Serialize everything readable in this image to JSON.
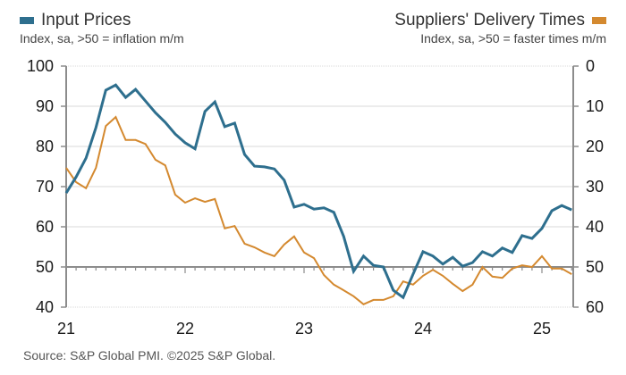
{
  "chart_data": {
    "type": "line",
    "title": "",
    "source": "Source: S&P Global PMI. ©2025 S&P Global.",
    "x_tick_labels": [
      "21",
      "22",
      "23",
      "24",
      "25"
    ],
    "x_start": "2021-01",
    "x_end": "2025-04",
    "frequency": "monthly",
    "left_axis": {
      "range": [
        40,
        100
      ],
      "ticks": [
        "100",
        "90",
        "80",
        "70",
        "60",
        "50",
        "40"
      ],
      "reference_line": 50
    },
    "right_axis": {
      "range": [
        0,
        60
      ],
      "inverted": true,
      "ticks": [
        "0",
        "10",
        "20",
        "30",
        "40",
        "50",
        "60"
      ]
    },
    "grid": true,
    "series": [
      {
        "name": "Input Prices",
        "subtitle": "Index, sa, >50 = inflation m/m",
        "axis": "left",
        "color": "#2e6f8e",
        "legend_position": "top-left",
        "values": [
          68.4,
          72.4,
          77.1,
          84.7,
          94.0,
          95.3,
          92.2,
          94.2,
          91.3,
          88.4,
          86.0,
          83.1,
          80.9,
          79.4,
          88.7,
          91.1,
          84.9,
          85.8,
          78.0,
          75.1,
          74.9,
          74.4,
          71.6,
          64.9,
          65.6,
          64.4,
          64.7,
          63.6,
          57.6,
          48.9,
          52.7,
          50.4,
          50.0,
          44.2,
          42.4,
          48.2,
          53.8,
          52.7,
          50.7,
          52.4,
          50.2,
          51.1,
          53.8,
          52.7,
          54.7,
          53.6,
          57.8,
          57.1,
          59.6,
          64.0,
          65.3,
          64.2
        ]
      },
      {
        "name": "Suppliers' Delivery Times",
        "subtitle": "Index, sa, >50 = faster times m/m",
        "axis": "right",
        "color": "#d4892f",
        "legend_position": "top-right",
        "values": [
          25.3,
          28.9,
          30.4,
          25.3,
          14.9,
          12.7,
          18.4,
          18.4,
          19.4,
          23.3,
          24.7,
          32.0,
          34.0,
          32.9,
          33.8,
          33.1,
          40.4,
          39.8,
          44.2,
          45.1,
          46.4,
          47.3,
          44.4,
          42.4,
          46.4,
          47.8,
          52.0,
          54.4,
          55.8,
          57.3,
          59.3,
          58.2,
          58.2,
          57.3,
          53.6,
          54.4,
          52.2,
          50.7,
          52.2,
          54.2,
          56.0,
          54.4,
          50.0,
          52.4,
          52.7,
          50.4,
          49.6,
          50.0,
          47.3,
          50.4,
          50.4,
          51.8
        ]
      }
    ]
  }
}
